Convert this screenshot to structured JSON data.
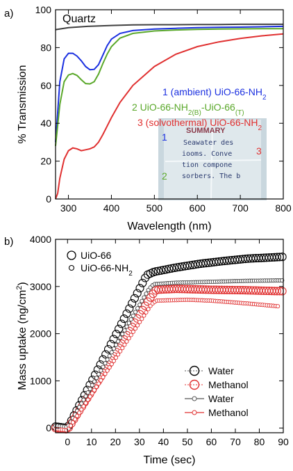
{
  "colors": {
    "blue": "#1a2fe0",
    "green": "#5aa82a",
    "red": "#e03030",
    "gray": "#404040",
    "black": "#000000"
  },
  "chart_data": [
    {
      "panel": "a)",
      "type": "line",
      "xlabel": "Wavelength (nm)",
      "ylabel": "% Transmission",
      "xlim": [
        270,
        800
      ],
      "ylim": [
        0,
        100
      ],
      "xticks": [
        300,
        400,
        500,
        600,
        700,
        800
      ],
      "yticks": [
        0,
        20,
        40,
        60,
        80,
        100
      ],
      "legend_placement": "right",
      "series": [
        {
          "name": "Quartz",
          "color": "gray",
          "x": [
            270,
            300,
            350,
            400,
            450,
            500,
            550,
            600,
            650,
            700,
            750,
            800
          ],
          "y": [
            89.5,
            90.5,
            91.3,
            91.7,
            92,
            92.1,
            92.1,
            92.2,
            92.2,
            92.3,
            92.3,
            92.3
          ]
        },
        {
          "name": "1 (ambient) UiO-66-NH2",
          "color": "blue",
          "x": [
            270,
            280,
            290,
            300,
            310,
            320,
            330,
            340,
            350,
            360,
            370,
            380,
            390,
            400,
            420,
            450,
            500,
            550,
            600,
            650,
            700,
            750,
            800
          ],
          "y": [
            30,
            62,
            74,
            77,
            77,
            75.5,
            73,
            70,
            68.3,
            68.5,
            71,
            76,
            81,
            84.5,
            87.5,
            89,
            89.8,
            90.2,
            90.5,
            90.7,
            90.8,
            91,
            91.2
          ]
        },
        {
          "name": "2 UiO-66-NH2(B)-UiO-66(T)",
          "color": "green",
          "x": [
            270,
            280,
            290,
            300,
            310,
            320,
            330,
            340,
            350,
            360,
            370,
            380,
            390,
            400,
            420,
            450,
            500,
            550,
            600,
            650,
            700,
            750,
            800
          ],
          "y": [
            28,
            50,
            62,
            65.5,
            66.3,
            65.3,
            63,
            61,
            60.8,
            62,
            66,
            71.5,
            76.5,
            80.5,
            85,
            87.5,
            88.8,
            89.3,
            89.6,
            89.8,
            89.9,
            90,
            90
          ]
        },
        {
          "name": "3 (solvothermal) UiO-66-NH2",
          "color": "red",
          "x": [
            270,
            275,
            280,
            290,
            300,
            310,
            320,
            330,
            340,
            350,
            360,
            370,
            380,
            390,
            400,
            420,
            450,
            500,
            550,
            600,
            650,
            700,
            750,
            800
          ],
          "y": [
            0,
            3,
            11,
            21,
            25.5,
            27,
            26.5,
            25.5,
            26,
            26.5,
            27.5,
            30,
            34,
            38.5,
            43,
            51,
            60,
            70,
            76.5,
            80.5,
            83,
            84.8,
            86.2,
            87.2
          ]
        }
      ],
      "annotations": [
        "Quartz",
        "1",
        "2",
        "3"
      ],
      "inset_photo_text": [
        "SUMMARY",
        "Seawater des",
        "iooms. Conve",
        "tion compone",
        "sorbers. The b"
      ]
    },
    {
      "panel": "b)",
      "type": "scatter",
      "xlabel": "Time (sec)",
      "ylabel": "Mass uptake (ng/cm²)",
      "xlim": [
        -5,
        90
      ],
      "ylim": [
        -100,
        4000
      ],
      "xticks": [
        0,
        10,
        20,
        30,
        40,
        50,
        60,
        70,
        80,
        90
      ],
      "yticks": [
        0,
        1000,
        2000,
        3000,
        4000
      ],
      "legend_top": [
        {
          "label": "UiO-66",
          "marker": "large-circle"
        },
        {
          "label": "UiO-66-NH2",
          "marker": "small-circle"
        }
      ],
      "legend_bottom_right": [
        {
          "label": "Water",
          "color": "black",
          "marker": "large-circle"
        },
        {
          "label": "Methanol",
          "color": "red",
          "marker": "large-circle"
        },
        {
          "label": "Water",
          "color": "gray",
          "marker": "small-circle-line"
        },
        {
          "label": "Methanol",
          "color": "red",
          "marker": "small-circle-line"
        }
      ],
      "series": [
        {
          "name": "UiO-66 Water",
          "color": "black",
          "marker": "large",
          "points": [
            [
              -5,
              30
            ],
            [
              0,
              0
            ],
            [
              33,
              3240
            ],
            [
              36,
              3310
            ],
            [
              45,
              3400
            ],
            [
              55,
              3480
            ],
            [
              65,
              3540
            ],
            [
              75,
              3590
            ],
            [
              90,
              3630
            ]
          ]
        },
        {
          "name": "UiO-66 Methanol",
          "color": "red",
          "marker": "large",
          "points": [
            [
              -5,
              0
            ],
            [
              0,
              -30
            ],
            [
              35,
              2800
            ],
            [
              37,
              2930
            ],
            [
              45,
              2950
            ],
            [
              60,
              2930
            ],
            [
              75,
              2920
            ],
            [
              90,
              2900
            ]
          ]
        },
        {
          "name": "UiO-66-NH2 Water",
          "color": "gray",
          "marker": "small",
          "points": [
            [
              -5,
              50
            ],
            [
              0,
              20
            ],
            [
              34,
              2950
            ],
            [
              36,
              3050
            ],
            [
              45,
              3080
            ],
            [
              60,
              3100
            ],
            [
              75,
              3120
            ],
            [
              90,
              3130
            ]
          ]
        },
        {
          "name": "UiO-66-NH2 Methanol",
          "color": "red",
          "marker": "small",
          "points": [
            [
              -5,
              -20
            ],
            [
              0,
              -50
            ],
            [
              35,
              2620
            ],
            [
              37,
              2700
            ],
            [
              50,
              2720
            ],
            [
              60,
              2700
            ],
            [
              75,
              2640
            ],
            [
              88,
              2580
            ]
          ]
        }
      ]
    }
  ]
}
